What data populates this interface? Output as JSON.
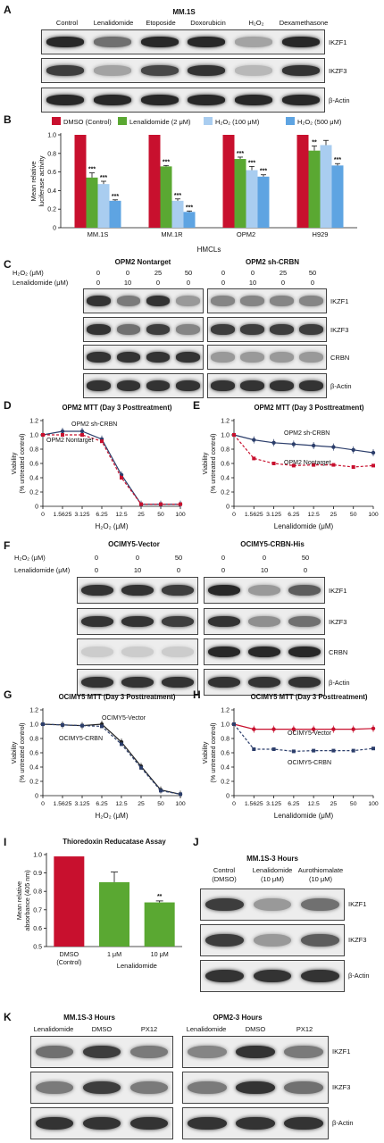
{
  "panelA": {
    "letter": "A",
    "title": "MM.1S",
    "lanes": [
      "Control",
      "Lenalidomide",
      "Etoposide",
      "Doxorubicin",
      "H₂O₂",
      "Dexamethasone"
    ],
    "rows": [
      "IKZF1",
      "IKZF3",
      "β-Actin"
    ]
  },
  "panelB": {
    "letter": "B",
    "xtitle": "HMCLs",
    "ylabel": "Mean relative luciferase activity"
  },
  "panelC": {
    "letter": "C",
    "title_left": "OPM2 Nontarget",
    "title_right": "OPM2 sh-CRBN",
    "h2o2_label": "H₂O₂ (μM)",
    "len_label": "Lenalidomide (μM)",
    "h2o2_vals": [
      "0",
      "0",
      "25",
      "50"
    ],
    "len_vals": [
      "0",
      "10",
      "0",
      "0"
    ],
    "rows": [
      "IKZF1",
      "IKZF3",
      "CRBN",
      "β-Actin"
    ]
  },
  "panelD": {
    "letter": "D",
    "title": "OPM2 MTT (Day 3 Posttreatment)",
    "xlabel": "H₂O₂ (μM)"
  },
  "panelE": {
    "letter": "E",
    "title": "OPM2 MTT (Day 3 Posttreatment)",
    "xlabel": "Lenalidomide (μM)"
  },
  "panelF": {
    "letter": "F",
    "title_left": "OCIMY5-Vector",
    "title_right": "OCIMY5-CRBN-His",
    "h2o2_label": "H₂O₂ (μM)",
    "len_label": "Lenalidomide (μM)",
    "h2o2_vals": [
      "0",
      "0",
      "50"
    ],
    "len_vals": [
      "0",
      "10",
      "0"
    ],
    "rows": [
      "IKZF1",
      "IKZF3",
      "CRBN",
      "β-Actin"
    ]
  },
  "panelG": {
    "letter": "G",
    "title": "OCIMY5 MTT (Day 3 Posttreatment)",
    "xlabel": "H₂O₂ (μM)"
  },
  "panelH": {
    "letter": "H",
    "title": "OCIMY5 MTT (Day 3 Posttreatment)",
    "xlabel": "Lenalidomide (μM)"
  },
  "panelI": {
    "letter": "I",
    "title": "Thioredoxin Reducatase Assay"
  },
  "panelJ": {
    "letter": "J",
    "title": "MM.1S-3 Hours",
    "lanes": [
      "Control\n(DMSO)",
      "Lenalidomide\n(10 μM)",
      "Aurothiomalate\n(10 μM)"
    ],
    "rows": [
      "IKZF1",
      "IKZF3",
      "β-Actin"
    ]
  },
  "panelK": {
    "letter": "K",
    "title_left": "MM.1S-3 Hours",
    "title_right": "OPM2-3 Hours",
    "lanes": [
      "Lenalidomide",
      "DMSO",
      "PX12"
    ],
    "rows": [
      "IKZF1",
      "IKZF3",
      "β-Actin"
    ]
  },
  "colors": {
    "dmso": "#c8102e",
    "lenalidomide": "#5aa832",
    "h2o2_100": "#a9cdf0",
    "h2o2_500": "#5ea4e2",
    "line_dark": "#2c3e6b",
    "line_red": "#c8102e"
  },
  "chart_data": [
    {
      "id": "B",
      "type": "bar",
      "categories": [
        "MM.1S",
        "MM.1R",
        "OPM2",
        "H929"
      ],
      "series": [
        {
          "name": "DMSO (Control)",
          "values": [
            1.0,
            1.0,
            1.0,
            1.0
          ]
        },
        {
          "name": "Lenalidomide (2 μM)",
          "values": [
            0.54,
            0.66,
            0.74,
            0.83
          ]
        },
        {
          "name": "H₂O₂ (100 μM)",
          "values": [
            0.47,
            0.29,
            0.62,
            0.89
          ]
        },
        {
          "name": "H₂O₂ (500 μM)",
          "values": [
            0.29,
            0.17,
            0.55,
            0.67
          ]
        }
      ],
      "errors": [
        [
          0,
          0,
          0,
          0
        ],
        [
          0.05,
          0.01,
          0.02,
          0.05
        ],
        [
          0.03,
          0.02,
          0.04,
          0.05
        ],
        [
          0.01,
          0.01,
          0.02,
          0.02
        ]
      ],
      "significance": [
        [
          "",
          "",
          "",
          ""
        ],
        [
          "***",
          "***",
          "***",
          "**"
        ],
        [
          "***",
          "***",
          "***",
          ""
        ],
        [
          "***",
          "***",
          "***",
          "***"
        ]
      ],
      "xlabel": "HMCLs",
      "ylabel": "Mean relative luciferase activity",
      "ylim": [
        0,
        1.0
      ],
      "yticks": [
        "0",
        "0.2",
        "0.4",
        "0.6",
        "0.8",
        "1.0"
      ],
      "legend": "top"
    },
    {
      "id": "D",
      "type": "line",
      "title": "OPM2 MTT (Day 3 Posttreatment)",
      "x": [
        "0",
        "1.5625",
        "3.125",
        "6.25",
        "12.5",
        "25",
        "50",
        "100"
      ],
      "series": [
        {
          "name": "OPM2 sh-CRBN",
          "values": [
            1.0,
            1.05,
            1.05,
            0.94,
            0.44,
            0.03,
            0.03,
            0.03
          ],
          "color": "#2c3e6b",
          "dashed": false
        },
        {
          "name": "OPM2 Nontarget",
          "values": [
            1.0,
            1.0,
            1.0,
            0.91,
            0.4,
            0.03,
            0.03,
            0.03
          ],
          "color": "#c8102e",
          "dashed": true
        }
      ],
      "xlabel": "H₂O₂ (μM)",
      "ylabel": "Viability (% untreated control)",
      "ylim": [
        0,
        1.2
      ],
      "yticks": [
        "0",
        "0.2",
        "0.4",
        "0.6",
        "0.8",
        "1.0",
        "1.2"
      ]
    },
    {
      "id": "E",
      "type": "line",
      "title": "OPM2 MTT (Day 3 Posttreatment)",
      "x": [
        "0",
        "1.5625",
        "3.125",
        "6.25",
        "12.5",
        "25",
        "50",
        "100"
      ],
      "series": [
        {
          "name": "OPM2 sh-CRBN",
          "values": [
            1.0,
            0.93,
            0.89,
            0.87,
            0.85,
            0.83,
            0.79,
            0.75
          ],
          "color": "#2c3e6b",
          "dashed": false
        },
        {
          "name": "OPM2 Nontarget",
          "values": [
            1.0,
            0.67,
            0.6,
            0.57,
            0.58,
            0.58,
            0.55,
            0.57
          ],
          "color": "#c8102e",
          "dashed": true
        }
      ],
      "xlabel": "Lenalidomide (μM)",
      "ylabel": "Viability (% untreated control)",
      "ylim": [
        0,
        1.2
      ],
      "yticks": [
        "0",
        "0.2",
        "0.4",
        "0.6",
        "0.8",
        "1.0",
        "1.2"
      ]
    },
    {
      "id": "G",
      "type": "line",
      "title": "OCIMY5 MTT (Day 3 Posttreatment)",
      "x": [
        "0",
        "1.5625",
        "3.125",
        "6.25",
        "12.5",
        "25",
        "50",
        "100"
      ],
      "series": [
        {
          "name": "OCIMY5-Vector",
          "values": [
            1.0,
            0.99,
            0.98,
            1.0,
            0.75,
            0.41,
            0.08,
            0.02
          ],
          "color": "#222222",
          "dashed": false
        },
        {
          "name": "OCIMY5-CRBN",
          "values": [
            1.0,
            0.99,
            0.98,
            0.97,
            0.72,
            0.39,
            0.07,
            0.02
          ],
          "color": "#2c3e6b",
          "dashed": true
        }
      ],
      "xlabel": "H₂O₂ (μM)",
      "ylabel": "Viability (% untreated control)",
      "ylim": [
        0,
        1.2
      ],
      "yticks": [
        "0",
        "0.2",
        "0.4",
        "0.6",
        "0.8",
        "1.0",
        "1.2"
      ]
    },
    {
      "id": "H",
      "type": "line",
      "title": "OCIMY5 MTT (Day 3 Posttreatment)",
      "x": [
        "0",
        "1.5625",
        "3.125",
        "6.25",
        "12.5",
        "25",
        "50",
        "100"
      ],
      "series": [
        {
          "name": "OCIMY5-Vector",
          "values": [
            1.0,
            0.93,
            0.93,
            0.93,
            0.93,
            0.93,
            0.93,
            0.94
          ],
          "color": "#c8102e",
          "dashed": false
        },
        {
          "name": "OCIMY5-CRBN",
          "values": [
            1.0,
            0.65,
            0.65,
            0.62,
            0.63,
            0.63,
            0.63,
            0.66
          ],
          "color": "#2c3e6b",
          "dashed": true
        }
      ],
      "xlabel": "Lenalidomide (μM)",
      "ylabel": "Viability (% untreated control)",
      "ylim": [
        0,
        1.2
      ],
      "yticks": [
        "0",
        "0.2",
        "0.4",
        "0.6",
        "0.8",
        "1.0",
        "1.2"
      ]
    },
    {
      "id": "I",
      "type": "bar",
      "title": "Thioredoxin Reducatase Assay",
      "categories": [
        "DMSO\n(Control)",
        "1 μM",
        "10 μM"
      ],
      "values": [
        0.99,
        0.85,
        0.74
      ],
      "errors": [
        0,
        0.055,
        0.008
      ],
      "colors": [
        "#c8102e",
        "#5aa832",
        "#5aa832"
      ],
      "significance": [
        "",
        "",
        "**"
      ],
      "group_label": "Lenalidomide",
      "ylabel": "Mean relative absorbance (405 nm)",
      "ylim": [
        0.5,
        1.0
      ],
      "yticks": [
        "0.5",
        "0.6",
        "0.7",
        "0.8",
        "0.9",
        "1.0"
      ]
    }
  ]
}
